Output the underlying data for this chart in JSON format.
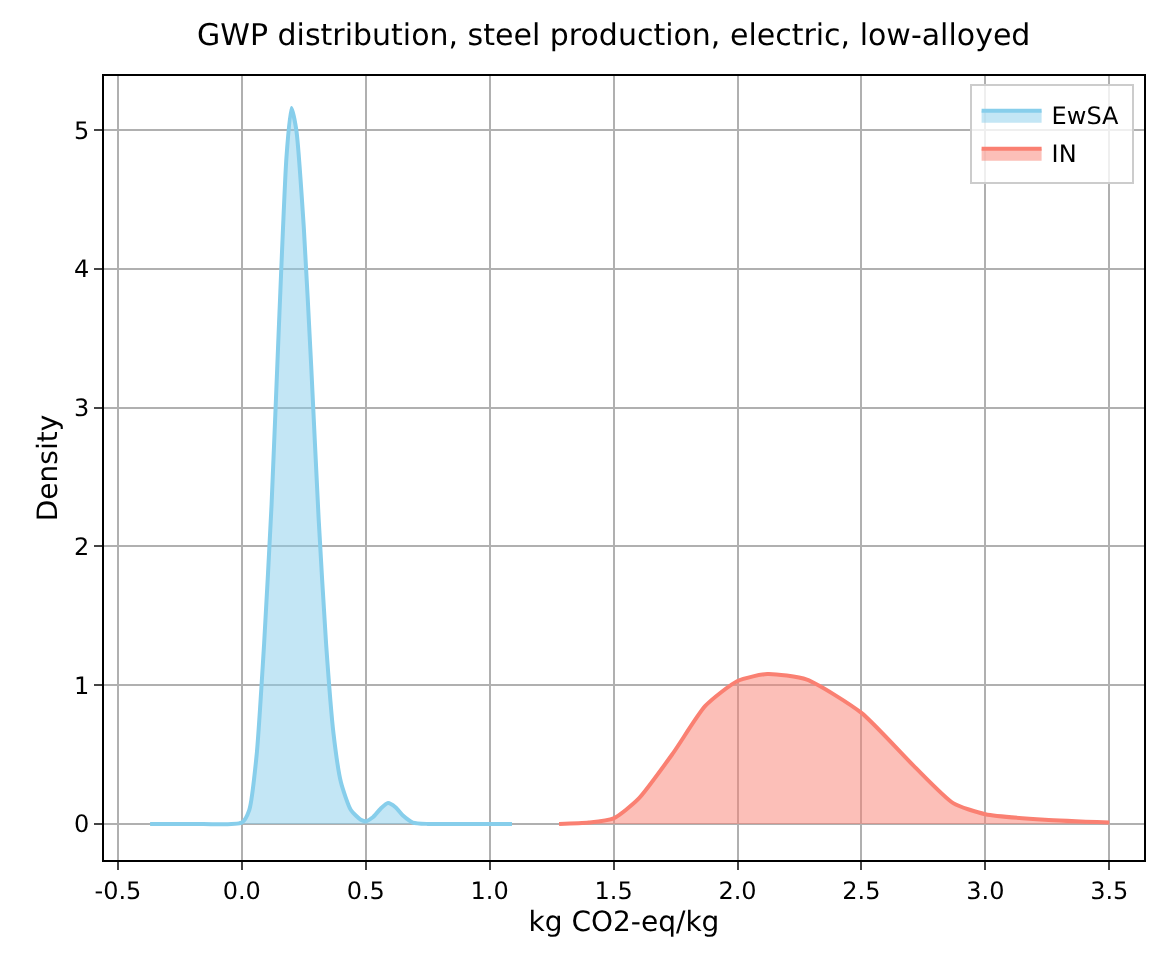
{
  "chart_data": {
    "type": "area",
    "title": "GWP distribution, steel production, electric, low-alloyed",
    "xlabel": "kg CO2-eq/kg",
    "ylabel": "Density",
    "xlim": [
      -0.556,
      3.64
    ],
    "ylim": [
      -0.26,
      5.39
    ],
    "xticks": [
      -0.5,
      {
        "value": 0,
        "label": "0.0"
      },
      0.5,
      {
        "value": 1,
        "label": "1.0"
      },
      1.5,
      {
        "value": 2,
        "label": "2.0"
      },
      2.5,
      {
        "value": 3,
        "label": "3.0"
      },
      3.5
    ],
    "yticks": [
      0,
      1,
      2,
      3,
      4,
      5
    ],
    "grid": true,
    "legend": "top right",
    "series": [
      {
        "name": "EwSA",
        "color": "#87ceeb",
        "x": [
          -0.37,
          -0.2,
          0,
          0.03,
          0.06,
          0.09,
          0.12,
          0.15,
          0.18,
          0.2,
          0.22,
          0.25,
          0.28,
          0.31,
          0.34,
          0.37,
          0.4,
          0.44,
          0.48,
          0.5,
          0.53,
          0.56,
          0.59,
          0.62,
          0.65,
          0.69,
          0.75,
          0.9,
          1.09
        ],
        "values": [
          0,
          0,
          0.01,
          0.1,
          0.5,
          1.3,
          2.3,
          3.6,
          4.8,
          5.16,
          5.0,
          4.3,
          3.3,
          2.2,
          1.3,
          0.65,
          0.3,
          0.1,
          0.03,
          0.02,
          0.05,
          0.11,
          0.15,
          0.12,
          0.06,
          0.01,
          0,
          0,
          0
        ]
      },
      {
        "name": "IN",
        "color": "#fa8072",
        "x": [
          1.28,
          1.4,
          1.5,
          1.6,
          1.74,
          1.87,
          2.0,
          2.12,
          2.28,
          2.5,
          2.71,
          2.87,
          3.0,
          3.24,
          3.5
        ],
        "values": [
          0,
          0.01,
          0.04,
          0.18,
          0.51,
          0.85,
          1.03,
          1.08,
          1.04,
          0.8,
          0.42,
          0.15,
          0.07,
          0.03,
          0.01
        ]
      }
    ]
  }
}
